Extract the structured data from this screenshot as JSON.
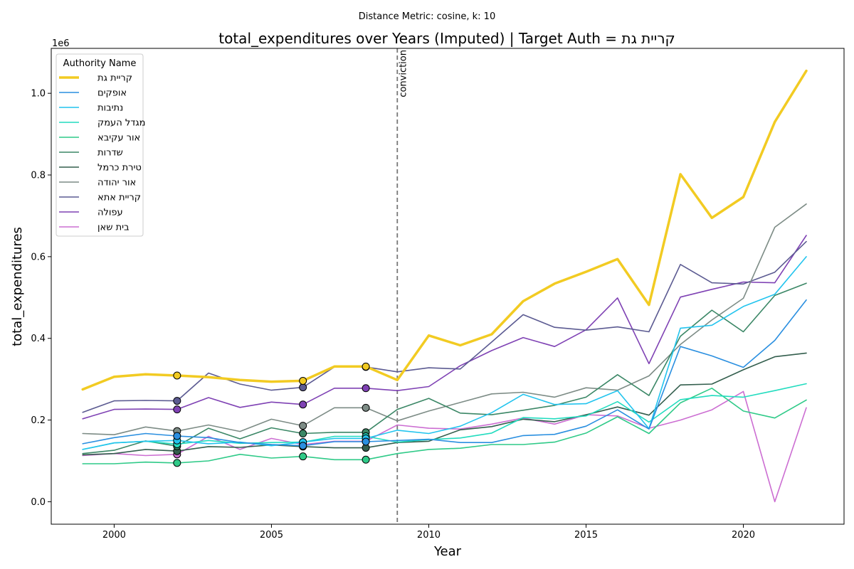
{
  "suptitle": "Distance Metric: cosine, k: 10",
  "chart_data": {
    "type": "line",
    "title": "total_expenditures over Years (Imputed) | Target Auth = קריית גת",
    "xlabel": "Year",
    "ylabel": "total_expenditures",
    "y_offset_label": "1e6",
    "xlim": [
      1998.0,
      2023.2
    ],
    "ylim": [
      -0.055,
      1.11
    ],
    "y_scale": 1000000,
    "x_ticks": [
      2000,
      2005,
      2010,
      2015,
      2020
    ],
    "y_ticks": [
      0.0,
      0.2,
      0.4,
      0.6,
      0.8,
      1.0
    ],
    "y_tick_labels": [
      "0.0",
      "0.2",
      "0.4",
      "0.6",
      "0.8",
      "1.0"
    ],
    "grid": false,
    "legend": {
      "title": "Authority Name",
      "placement": "top-left"
    },
    "vline": {
      "x": 2009,
      "label": "conviction",
      "color": "#777777",
      "style": "dashed"
    },
    "marker_years": [
      2002,
      2006,
      2008
    ],
    "years": [
      1999,
      2000,
      2001,
      2002,
      2003,
      2004,
      2005,
      2006,
      2007,
      2008,
      2009,
      2010,
      2011,
      2012,
      2013,
      2014,
      2015,
      2016,
      2017,
      2018,
      2019,
      2020,
      2021,
      2022
    ],
    "series": [
      {
        "name": "קריית גת",
        "color": "#f2cb22",
        "width": 3.5,
        "values": [
          0.275,
          0.306,
          0.312,
          0.309,
          0.305,
          0.298,
          0.294,
          0.296,
          0.331,
          0.331,
          0.298,
          0.407,
          0.383,
          0.41,
          0.491,
          0.534,
          0.563,
          0.594,
          0.482,
          0.802,
          0.695,
          0.746,
          0.93,
          1.055
        ]
      },
      {
        "name": "אופקים",
        "color": "#2a8fe0",
        "width": 1.6,
        "values": [
          0.142,
          0.157,
          0.167,
          0.161,
          0.157,
          0.145,
          0.14,
          0.137,
          0.147,
          0.147,
          0.15,
          0.153,
          0.145,
          0.145,
          0.162,
          0.165,
          0.185,
          0.225,
          0.178,
          0.38,
          0.357,
          0.329,
          0.395,
          0.494
        ]
      },
      {
        "name": "נתיבות",
        "color": "#22c4ee",
        "width": 1.6,
        "values": [
          0.128,
          0.144,
          0.148,
          0.15,
          0.142,
          0.146,
          0.137,
          0.146,
          0.155,
          0.155,
          0.175,
          0.167,
          0.185,
          0.218,
          0.263,
          0.238,
          0.24,
          0.272,
          0.179,
          0.425,
          0.432,
          0.478,
          0.508,
          0.6
        ]
      },
      {
        "name": "מגדל העמק",
        "color": "#22dcbf",
        "width": 1.6,
        "values": [
          0.128,
          0.144,
          0.148,
          0.141,
          0.15,
          0.143,
          0.145,
          0.146,
          0.16,
          0.16,
          0.146,
          0.152,
          0.156,
          0.168,
          0.206,
          0.203,
          0.21,
          0.245,
          0.195,
          0.25,
          0.26,
          0.256,
          0.272,
          0.289
        ]
      },
      {
        "name": "אור עקיבא",
        "color": "#2fca88",
        "width": 1.6,
        "values": [
          0.093,
          0.093,
          0.097,
          0.095,
          0.1,
          0.116,
          0.107,
          0.111,
          0.103,
          0.103,
          0.118,
          0.128,
          0.131,
          0.14,
          0.14,
          0.146,
          0.168,
          0.208,
          0.167,
          0.242,
          0.278,
          0.222,
          0.205,
          0.249
        ]
      },
      {
        "name": "שדרות",
        "color": "#3b8766",
        "width": 1.6,
        "values": [
          0.118,
          0.126,
          0.149,
          0.136,
          0.18,
          0.154,
          0.181,
          0.167,
          0.17,
          0.17,
          0.226,
          0.253,
          0.217,
          0.213,
          0.224,
          0.236,
          0.256,
          0.311,
          0.26,
          0.405,
          0.469,
          0.416,
          0.505,
          0.535
        ]
      },
      {
        "name": "טירת כרמל",
        "color": "#335e4d",
        "width": 1.6,
        "values": [
          0.115,
          0.118,
          0.128,
          0.124,
          0.135,
          0.133,
          0.139,
          0.135,
          0.132,
          0.132,
          0.145,
          0.148,
          0.176,
          0.184,
          0.202,
          0.196,
          0.213,
          0.232,
          0.212,
          0.286,
          0.288,
          0.323,
          0.355,
          0.364
        ]
      },
      {
        "name": "אור יהודה",
        "color": "#7d8c86",
        "width": 1.6,
        "values": [
          0.167,
          0.164,
          0.183,
          0.173,
          0.188,
          0.172,
          0.202,
          0.186,
          0.23,
          0.23,
          0.198,
          0.222,
          0.243,
          0.264,
          0.268,
          0.256,
          0.279,
          0.273,
          0.308,
          0.385,
          0.445,
          0.498,
          0.672,
          0.729
        ]
      },
      {
        "name": "קריית אתא",
        "color": "#5c5b92",
        "width": 1.6,
        "values": [
          0.219,
          0.247,
          0.248,
          0.247,
          0.315,
          0.288,
          0.273,
          0.28,
          0.33,
          0.33,
          0.318,
          0.328,
          0.325,
          0.391,
          0.458,
          0.427,
          0.42,
          0.428,
          0.416,
          0.581,
          0.536,
          0.533,
          0.562,
          0.637
        ]
      },
      {
        "name": "עפולה",
        "color": "#7f42b4",
        "width": 1.6,
        "values": [
          0.203,
          0.226,
          0.227,
          0.226,
          0.255,
          0.231,
          0.244,
          0.238,
          0.278,
          0.278,
          0.272,
          0.282,
          0.333,
          0.37,
          0.402,
          0.38,
          0.421,
          0.499,
          0.338,
          0.501,
          0.52,
          0.538,
          0.536,
          0.652
        ]
      },
      {
        "name": "בית שאן",
        "color": "#cc6ed2",
        "width": 1.6,
        "values": [
          0.113,
          0.118,
          0.113,
          0.116,
          0.16,
          0.128,
          0.155,
          0.14,
          0.148,
          0.148,
          0.188,
          0.18,
          0.178,
          0.19,
          0.205,
          0.19,
          0.213,
          0.21,
          0.18,
          0.2,
          0.225,
          0.27,
          0.0,
          0.23
        ]
      }
    ]
  }
}
